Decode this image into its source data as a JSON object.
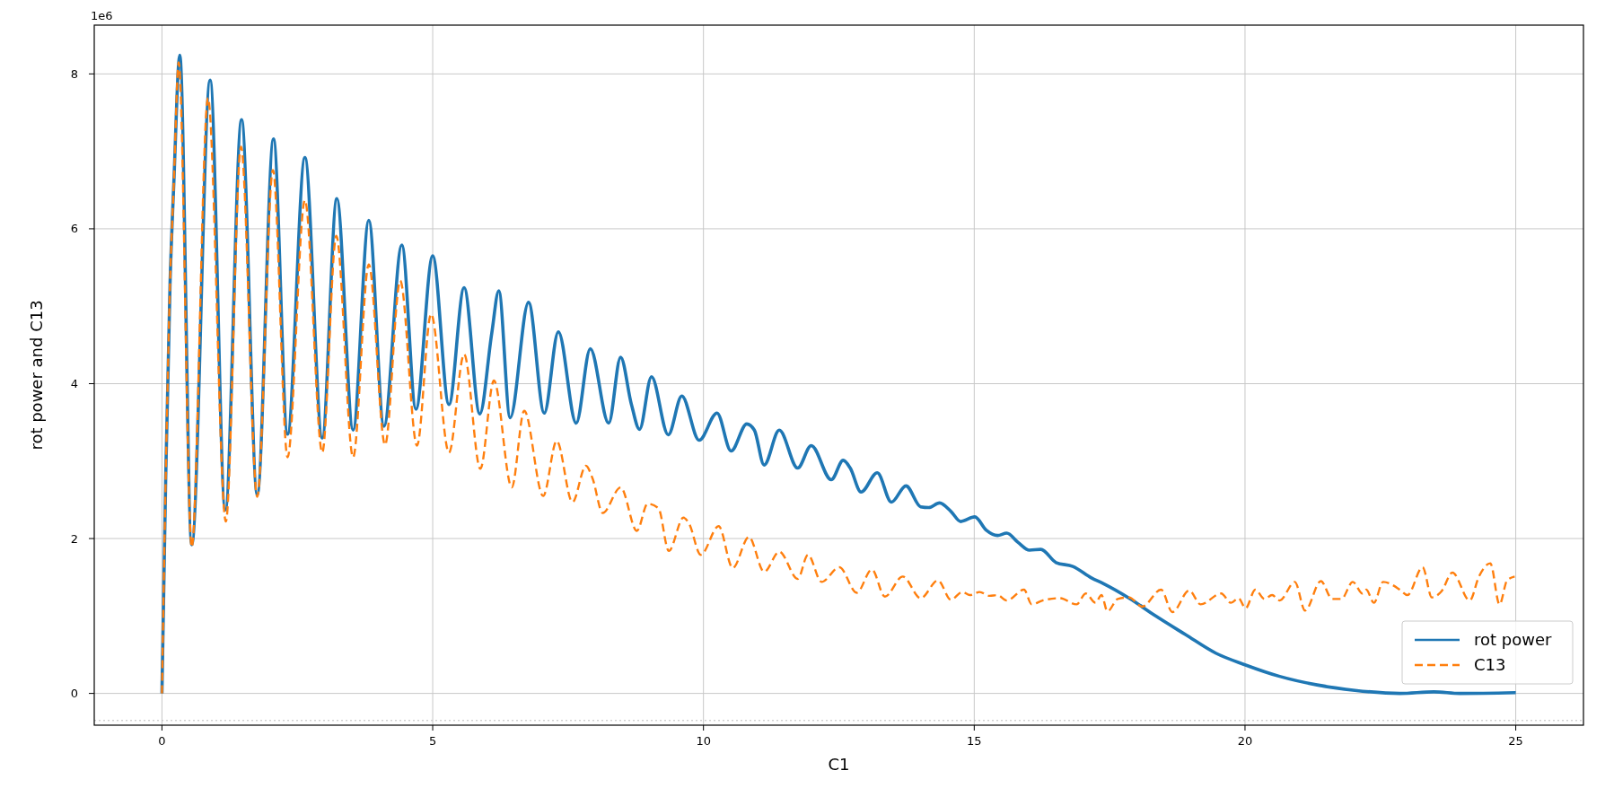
{
  "chart_data": {
    "type": "line",
    "xlabel": "C1",
    "ylabel": "rot power and C13",
    "annotations": [
      "1e6"
    ],
    "xlim": [
      -1.25,
      26.25
    ],
    "xticks": [
      0,
      5,
      10,
      15,
      20,
      25
    ],
    "ylim": [
      -0.41,
      8.63
    ],
    "yticks": [
      0,
      2,
      4,
      6,
      8
    ],
    "grid": true,
    "legend": "bottom right",
    "ref_lines": [
      {
        "axis": "y",
        "value": -0.35,
        "color": "#bbbbbb",
        "line_style": "dotted"
      }
    ],
    "series": [
      {
        "name": "rot power",
        "color": "#1f77b4",
        "line_style": "solid",
        "x": [
          0,
          0.07,
          0.15,
          0.22,
          0.33,
          0.55,
          0.89,
          1.17,
          1.47,
          1.76,
          2.06,
          2.32,
          2.64,
          2.96,
          3.23,
          3.53,
          3.82,
          4.1,
          4.43,
          4.69,
          5,
          5.3,
          5.58,
          5.87,
          6.09,
          6.22,
          6.43,
          6.77,
          7.06,
          7.32,
          7.65,
          7.91,
          8.25,
          8.47,
          8.67,
          8.82,
          9.04,
          9.35,
          9.6,
          9.92,
          10.25,
          10.51,
          10.8,
          10.94,
          11.12,
          11.4,
          11.74,
          11.99,
          12.36,
          12.58,
          12.71,
          12.91,
          13.21,
          13.47,
          13.74,
          14.01,
          14.16,
          14.36,
          14.57,
          14.75,
          15.01,
          15.22,
          15.43,
          15.6,
          15.81,
          16.02,
          16.23,
          16.51,
          16.82,
          17.17,
          17.38,
          17.86,
          18.35,
          18.9,
          19.46,
          20,
          20.64,
          21.33,
          22.03,
          22.86,
          23.49,
          23.97,
          25
        ],
        "values": [
          0,
          2.8,
          5.3,
          6.6,
          8.24,
          1.92,
          7.92,
          2.37,
          7.41,
          2.57,
          7.16,
          3.35,
          6.92,
          3.3,
          6.39,
          3.4,
          6.11,
          3.45,
          5.79,
          3.67,
          5.65,
          3.73,
          5.24,
          3.61,
          4.65,
          5.2,
          3.56,
          5.05,
          3.62,
          4.67,
          3.49,
          4.45,
          3.49,
          4.34,
          3.73,
          3.41,
          4.09,
          3.34,
          3.84,
          3.27,
          3.62,
          3.13,
          3.48,
          3.4,
          2.95,
          3.4,
          2.91,
          3.2,
          2.76,
          3.01,
          2.91,
          2.6,
          2.85,
          2.47,
          2.68,
          2.41,
          2.4,
          2.46,
          2.35,
          2.22,
          2.28,
          2.11,
          2.04,
          2.07,
          1.95,
          1.85,
          1.86,
          1.69,
          1.64,
          1.49,
          1.42,
          1.23,
          1.0,
          0.76,
          0.52,
          0.37,
          0.22,
          0.11,
          0.04,
          0,
          0.02,
          0,
          0.01
        ]
      },
      {
        "name": "C13",
        "color": "#ff7f0e",
        "line_style": "dashed",
        "x": [
          0,
          0.07,
          0.15,
          0.22,
          0.31,
          0.55,
          0.85,
          1.18,
          1.46,
          1.76,
          2.05,
          2.32,
          2.64,
          2.96,
          3.22,
          3.53,
          3.82,
          4.12,
          4.4,
          4.71,
          4.97,
          5.3,
          5.58,
          5.88,
          6.13,
          6.46,
          6.69,
          7.04,
          7.29,
          7.58,
          7.83,
          7.95,
          8.14,
          8.47,
          8.77,
          8.97,
          9.17,
          9.36,
          9.63,
          9.73,
          9.95,
          10.28,
          10.54,
          10.84,
          11.12,
          11.4,
          11.74,
          11.93,
          12.18,
          12.51,
          12.83,
          13.11,
          13.35,
          13.68,
          14.01,
          14.33,
          14.57,
          14.78,
          14.92,
          15.1,
          15.28,
          15.43,
          15.6,
          15.92,
          16.06,
          16.26,
          16.58,
          16.89,
          17.06,
          17.24,
          17.35,
          17.46,
          17.65,
          17.86,
          18.1,
          18.45,
          18.66,
          18.97,
          19.18,
          19.56,
          19.74,
          19.88,
          20.01,
          20.19,
          20.36,
          20.5,
          20.64,
          20.92,
          21.11,
          21.4,
          21.61,
          21.78,
          21.99,
          22.17,
          22.24,
          22.38,
          22.55,
          22.86,
          23,
          23.28,
          23.45,
          23.63,
          23.83,
          24.15,
          24.32,
          24.53,
          24.7,
          24.84,
          24.98
        ],
        "values": [
          0,
          2.8,
          5.3,
          6.6,
          8.15,
          1.89,
          7.69,
          2.22,
          7.06,
          2.54,
          6.76,
          3.05,
          6.37,
          3.11,
          5.91,
          3.05,
          5.54,
          3.21,
          5.33,
          3.2,
          4.9,
          3.11,
          4.38,
          2.9,
          4.04,
          2.66,
          3.65,
          2.55,
          3.26,
          2.47,
          2.94,
          2.78,
          2.33,
          2.66,
          2.1,
          2.45,
          2.39,
          1.84,
          2.27,
          2.2,
          1.79,
          2.16,
          1.62,
          2.02,
          1.57,
          1.83,
          1.48,
          1.79,
          1.44,
          1.63,
          1.3,
          1.6,
          1.25,
          1.51,
          1.23,
          1.46,
          1.21,
          1.31,
          1.27,
          1.31,
          1.26,
          1.27,
          1.2,
          1.34,
          1.15,
          1.2,
          1.23,
          1.15,
          1.29,
          1.17,
          1.27,
          1.06,
          1.22,
          1.24,
          1.12,
          1.34,
          1.05,
          1.33,
          1.15,
          1.29,
          1.17,
          1.23,
          1.1,
          1.34,
          1.22,
          1.27,
          1.2,
          1.44,
          1.07,
          1.45,
          1.22,
          1.22,
          1.44,
          1.29,
          1.34,
          1.17,
          1.44,
          1.34,
          1.27,
          1.63,
          1.24,
          1.32,
          1.56,
          1.2,
          1.51,
          1.68,
          1.15,
          1.46,
          1.51
        ]
      }
    ]
  }
}
